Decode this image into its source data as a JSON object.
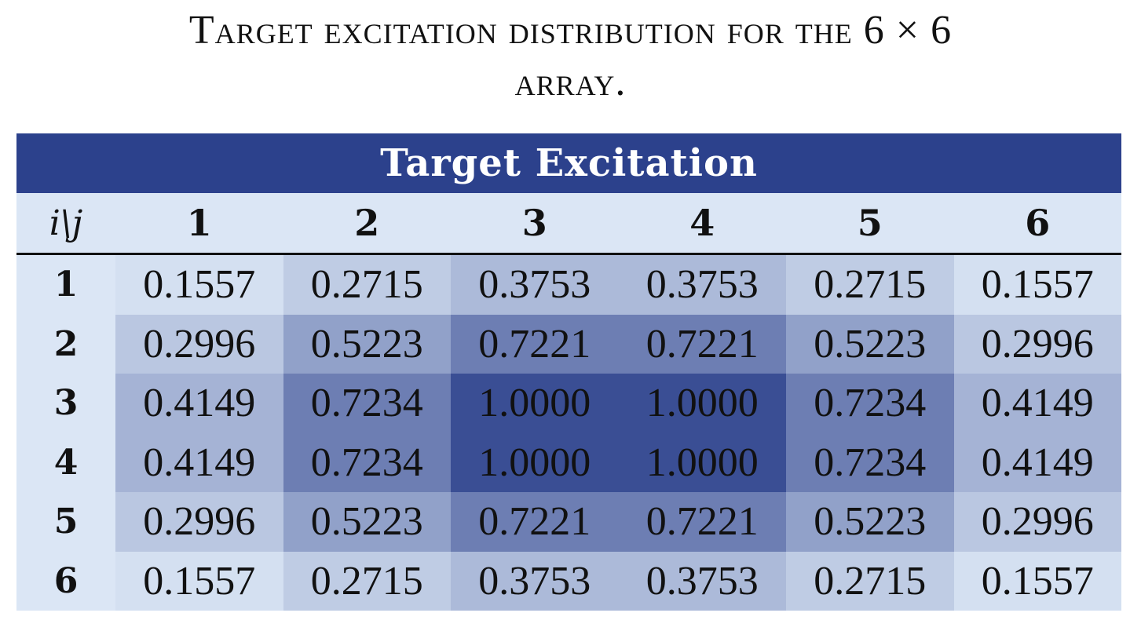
{
  "caption": {
    "line1": "Target excitation distribution for the 6 × 6",
    "line2": "array."
  },
  "table": {
    "title": "Target Excitation",
    "corner_label": "i\\j",
    "column_headers": [
      "1",
      "2",
      "3",
      "4",
      "5",
      "6"
    ],
    "row_headers": [
      "1",
      "2",
      "3",
      "4",
      "5",
      "6"
    ],
    "rows": [
      [
        "0.1557",
        "0.2715",
        "0.3753",
        "0.3753",
        "0.2715",
        "0.1557"
      ],
      [
        "0.2996",
        "0.5223",
        "0.7221",
        "0.7221",
        "0.5223",
        "0.2996"
      ],
      [
        "0.4149",
        "0.7234",
        "1.0000",
        "1.0000",
        "0.7234",
        "0.4149"
      ],
      [
        "0.4149",
        "0.7234",
        "1.0000",
        "1.0000",
        "0.7234",
        "0.4149"
      ],
      [
        "0.2996",
        "0.5223",
        "0.7221",
        "0.7221",
        "0.5223",
        "0.2996"
      ],
      [
        "0.1557",
        "0.2715",
        "0.3753",
        "0.3753",
        "0.2715",
        "0.1557"
      ]
    ]
  },
  "colors": {
    "title_bar": "#2c418c",
    "header_bg": "#dbe6f5",
    "shade_low": "#dbe6f5",
    "shade_high": "#2c418c"
  }
}
